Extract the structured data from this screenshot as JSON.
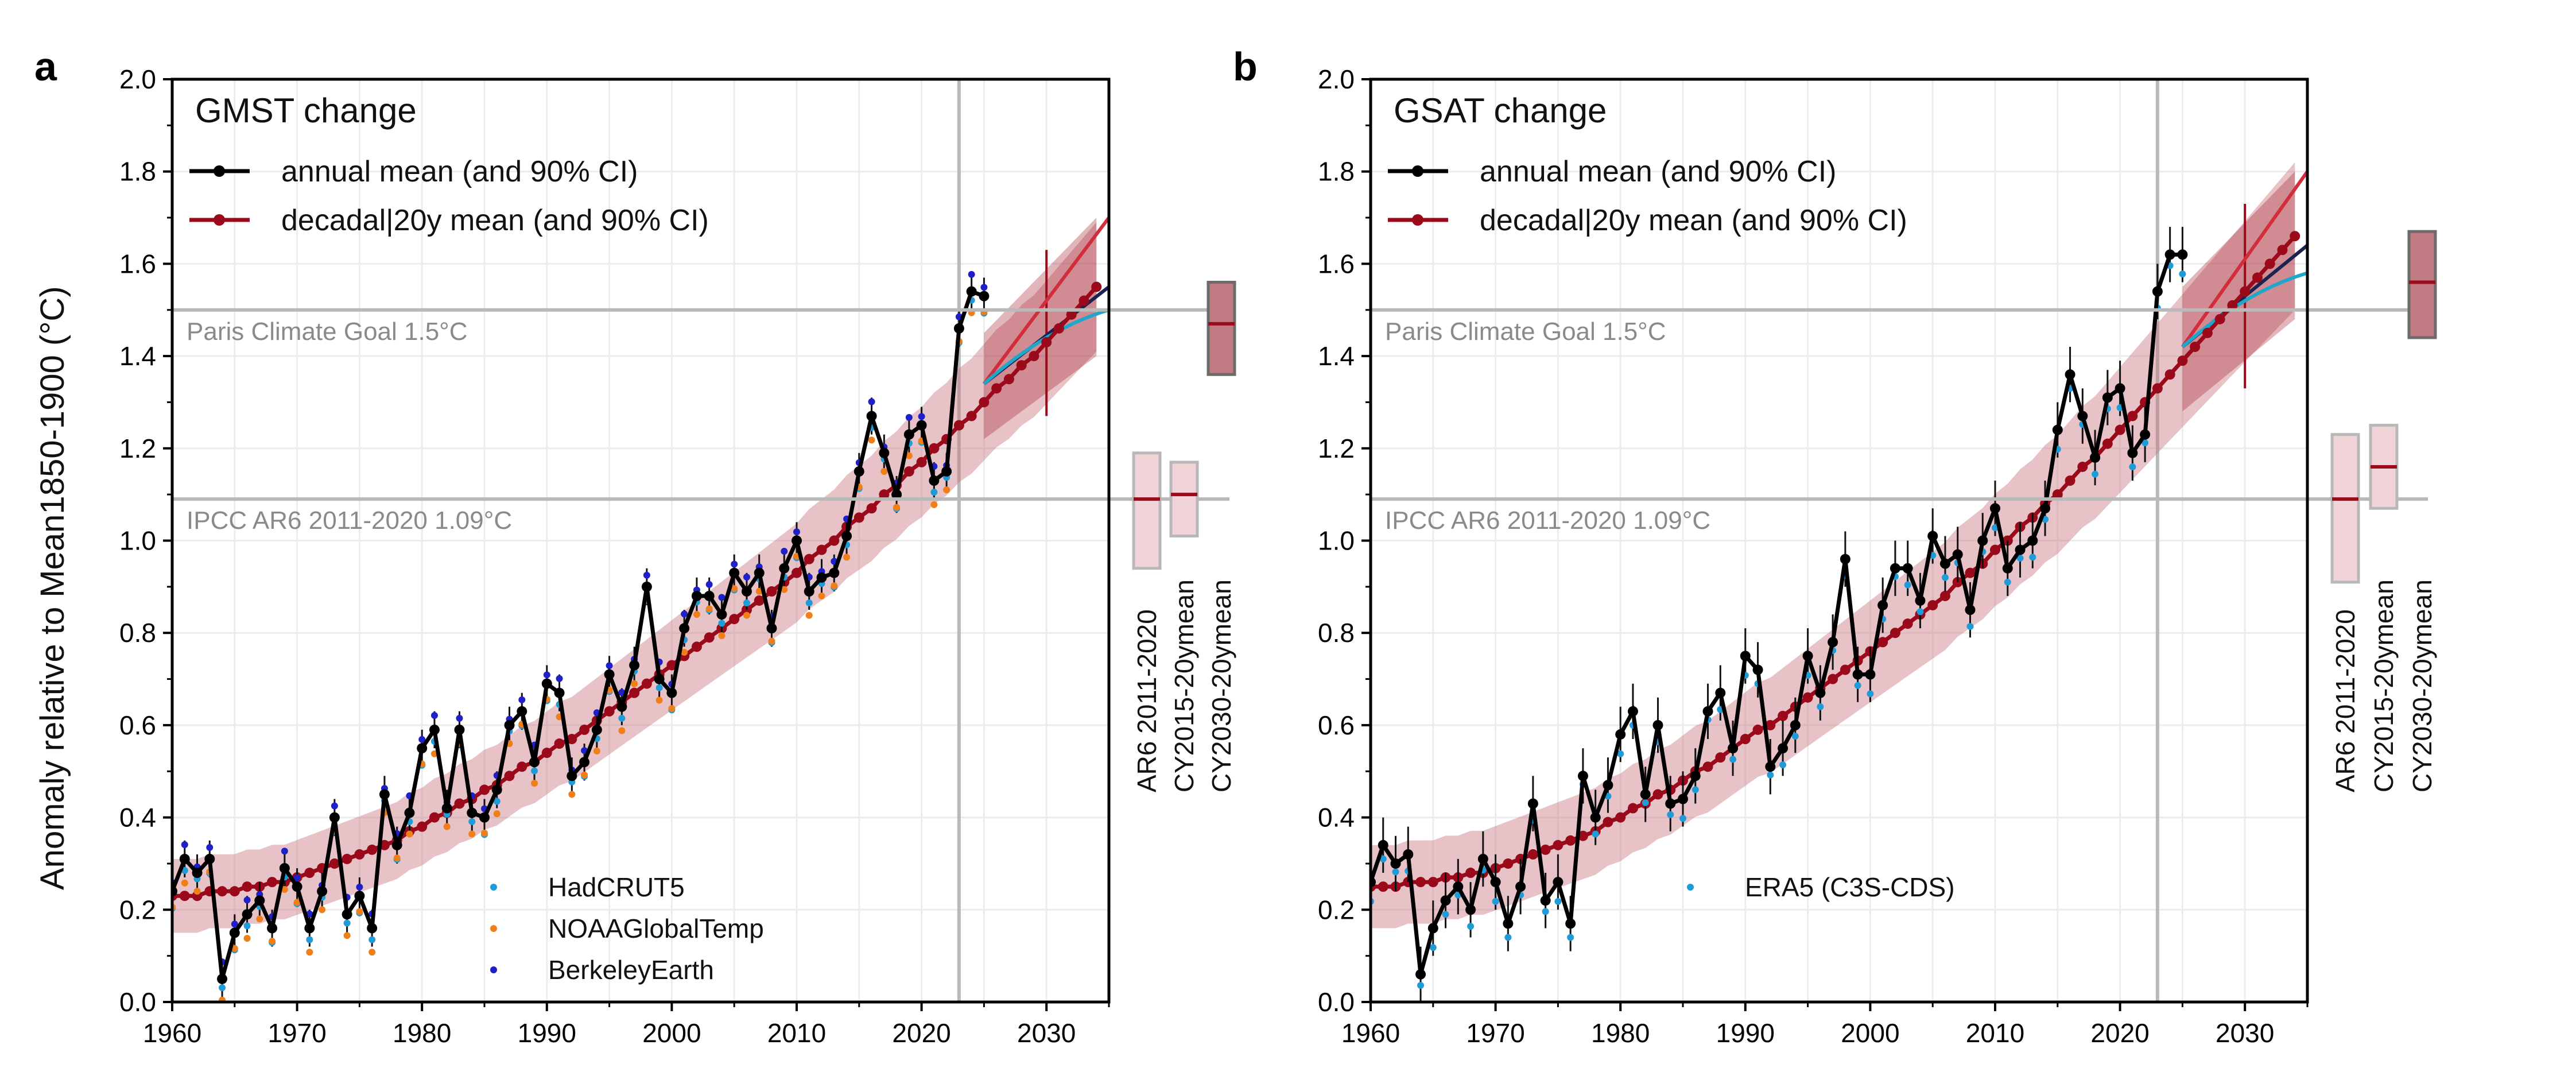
{
  "figure": {
    "ylabel": "Anomaly relative to Mean1850-1900 (°C)"
  },
  "colors": {
    "annual": "#000000",
    "decadal": "#9b0a1a",
    "band": "#c97b84",
    "hadcrut": "#1f9bd7",
    "noaa": "#f07f1a",
    "berkeley": "#2020c8",
    "era5": "#1f9bd7",
    "reference": "#b9b9b9",
    "proj_cyan": "#1fa7c9",
    "proj_red": "#d12d3a",
    "proj_navy": "#1b2350"
  },
  "chart_data": [
    {
      "panel": "a",
      "type": "line",
      "title": "GMST change",
      "xlabel": "",
      "ylabel": "Anomaly relative to Mean1850-1900 (°C)",
      "xlim": [
        1960,
        2035
      ],
      "ylim": [
        0.0,
        2.0
      ],
      "xticks": [
        "1960",
        "1970",
        "1980",
        "1990",
        "2000",
        "2010",
        "2020",
        "2030"
      ],
      "yticks": [
        "0.0",
        "0.2",
        "0.4",
        "0.6",
        "0.8",
        "1.0",
        "1.2",
        "1.4",
        "1.6",
        "1.8",
        "2.0"
      ],
      "grid": true,
      "legend_top": [
        "annual mean (and 90% CI)",
        "decadal|20y mean (and 90% CI)"
      ],
      "legend_bottom": [
        "HadCRUT5",
        "NOAAGlobalTemp",
        "BerkeleyEarth"
      ],
      "reference_lines": [
        {
          "label": "Paris Climate Goal 1.5°C",
          "y": 1.5
        },
        {
          "label": "IPCC AR6 2011-2020 1.09°C",
          "y": 1.09
        }
      ],
      "vline_year": 2023,
      "annual_years": [
        1960,
        2025
      ],
      "annual_values": [
        0.24,
        0.31,
        0.28,
        0.31,
        0.05,
        0.15,
        0.19,
        0.22,
        0.16,
        0.29,
        0.25,
        0.16,
        0.24,
        0.4,
        0.19,
        0.23,
        0.16,
        0.45,
        0.34,
        0.41,
        0.55,
        0.59,
        0.42,
        0.59,
        0.41,
        0.4,
        0.46,
        0.6,
        0.63,
        0.52,
        0.69,
        0.67,
        0.49,
        0.52,
        0.59,
        0.71,
        0.64,
        0.73,
        0.9,
        0.7,
        0.67,
        0.81,
        0.88,
        0.88,
        0.84,
        0.93,
        0.89,
        0.93,
        0.81,
        0.94,
        1.0,
        0.89,
        0.92,
        0.93,
        1.01,
        1.15,
        1.27,
        1.19,
        1.1,
        1.23,
        1.25,
        1.13,
        1.15,
        1.46,
        1.54,
        1.53
      ],
      "annual_ci": 0.04,
      "decadal_years": [
        1960,
        2034
      ],
      "decadal_values": [
        0.23,
        0.23,
        0.23,
        0.24,
        0.24,
        0.24,
        0.25,
        0.25,
        0.26,
        0.26,
        0.27,
        0.28,
        0.29,
        0.3,
        0.31,
        0.32,
        0.33,
        0.34,
        0.35,
        0.37,
        0.38,
        0.4,
        0.41,
        0.43,
        0.44,
        0.46,
        0.47,
        0.49,
        0.51,
        0.52,
        0.54,
        0.56,
        0.57,
        0.59,
        0.61,
        0.63,
        0.65,
        0.67,
        0.69,
        0.71,
        0.73,
        0.75,
        0.77,
        0.79,
        0.81,
        0.83,
        0.85,
        0.87,
        0.89,
        0.91,
        0.93,
        0.96,
        0.98,
        1.0,
        1.03,
        1.05,
        1.07,
        1.1,
        1.12,
        1.15,
        1.17,
        1.2,
        1.22,
        1.25,
        1.27,
        1.3,
        1.33,
        1.35,
        1.38,
        1.4,
        1.43,
        1.46,
        1.49,
        1.52,
        1.55
      ],
      "decadal_ci_halfwidth": [
        0.08,
        0.14
      ],
      "projections": [
        {
          "color": "proj_red",
          "x": [
            2025,
            2035
          ],
          "y": [
            1.34,
            1.7
          ]
        },
        {
          "color": "proj_navy",
          "x": [
            2025,
            2035
          ],
          "y": [
            1.34,
            1.55
          ]
        },
        {
          "color": "proj_cyan",
          "x": [
            2025,
            2035
          ],
          "y": [
            1.34,
            1.5
          ]
        }
      ],
      "proj_band": {
        "x": [
          2025,
          2034
        ],
        "low": [
          1.22,
          1.4
        ],
        "high": [
          1.45,
          1.7
        ]
      },
      "right_boxes": [
        {
          "label": "AR6 2011-2020",
          "mean": 1.09,
          "low": 0.94,
          "high": 1.19,
          "strong": false
        },
        {
          "label": "CY2015-20ymean",
          "mean": 1.1,
          "low": 1.01,
          "high": 1.17,
          "strong": false
        },
        {
          "label": "CY2030-20ymean",
          "mean": 1.47,
          "low": 1.36,
          "high": 1.56,
          "strong": true
        }
      ]
    },
    {
      "panel": "b",
      "type": "line",
      "title": "GSAT change",
      "xlabel": "",
      "ylabel": "",
      "xlim": [
        1960,
        2035
      ],
      "ylim": [
        0.0,
        2.0
      ],
      "xticks": [
        "1960",
        "1970",
        "1980",
        "1990",
        "2000",
        "2010",
        "2020",
        "2030"
      ],
      "yticks": [
        "0.0",
        "0.2",
        "0.4",
        "0.6",
        "0.8",
        "1.0",
        "1.2",
        "1.4",
        "1.6",
        "1.8",
        "2.0"
      ],
      "grid": true,
      "legend_top": [
        "annual mean (and 90% CI)",
        "decadal|20y mean (and 90% CI)"
      ],
      "legend_bottom": [
        "ERA5 (C3S-CDS)"
      ],
      "reference_lines": [
        {
          "label": "Paris Climate Goal 1.5°C",
          "y": 1.5
        },
        {
          "label": "IPCC AR6 2011-2020 1.09°C",
          "y": 1.09
        }
      ],
      "vline_year": 2023,
      "annual_years": [
        1960,
        2025
      ],
      "annual_values": [
        0.26,
        0.34,
        0.3,
        0.32,
        0.06,
        0.16,
        0.22,
        0.25,
        0.2,
        0.31,
        0.26,
        0.17,
        0.25,
        0.43,
        0.22,
        0.26,
        0.17,
        0.49,
        0.4,
        0.47,
        0.58,
        0.63,
        0.45,
        0.6,
        0.43,
        0.44,
        0.49,
        0.63,
        0.67,
        0.55,
        0.75,
        0.72,
        0.51,
        0.55,
        0.6,
        0.75,
        0.67,
        0.78,
        0.96,
        0.71,
        0.71,
        0.86,
        0.94,
        0.94,
        0.87,
        1.01,
        0.95,
        0.97,
        0.85,
        1.0,
        1.07,
        0.94,
        0.98,
        1.0,
        1.07,
        1.24,
        1.36,
        1.27,
        1.18,
        1.31,
        1.33,
        1.19,
        1.23,
        1.54,
        1.62,
        1.62
      ],
      "annual_ci": 0.06,
      "decadal_years": [
        1960,
        2034
      ],
      "decadal_values": [
        0.25,
        0.25,
        0.25,
        0.26,
        0.26,
        0.26,
        0.27,
        0.27,
        0.28,
        0.28,
        0.29,
        0.3,
        0.31,
        0.32,
        0.33,
        0.34,
        0.35,
        0.36,
        0.37,
        0.39,
        0.4,
        0.42,
        0.43,
        0.45,
        0.46,
        0.48,
        0.5,
        0.51,
        0.53,
        0.55,
        0.57,
        0.59,
        0.6,
        0.62,
        0.64,
        0.66,
        0.68,
        0.7,
        0.72,
        0.74,
        0.76,
        0.78,
        0.8,
        0.82,
        0.84,
        0.86,
        0.88,
        0.91,
        0.93,
        0.95,
        0.98,
        1.0,
        1.03,
        1.05,
        1.08,
        1.1,
        1.13,
        1.16,
        1.18,
        1.21,
        1.24,
        1.27,
        1.3,
        1.33,
        1.36,
        1.39,
        1.42,
        1.45,
        1.48,
        1.51,
        1.54,
        1.57,
        1.6,
        1.63,
        1.66
      ],
      "decadal_ci_halfwidth": [
        0.09,
        0.16
      ],
      "projections": [
        {
          "color": "proj_red",
          "x": [
            2025,
            2035
          ],
          "y": [
            1.42,
            1.8
          ]
        },
        {
          "color": "proj_navy",
          "x": [
            2025,
            2035
          ],
          "y": [
            1.42,
            1.64
          ]
        },
        {
          "color": "proj_cyan",
          "x": [
            2025,
            2035
          ],
          "y": [
            1.42,
            1.58
          ]
        }
      ],
      "proj_band": {
        "x": [
          2025,
          2034
        ],
        "low": [
          1.28,
          1.48
        ],
        "high": [
          1.55,
          1.8
        ]
      },
      "right_boxes": [
        {
          "label": "AR6 2011-2020",
          "mean": 1.09,
          "low": 0.91,
          "high": 1.23,
          "strong": false
        },
        {
          "label": "CY2015-20ymean",
          "mean": 1.16,
          "low": 1.07,
          "high": 1.25,
          "strong": false
        },
        {
          "label": "CY2030-20ymean",
          "mean": 1.56,
          "low": 1.44,
          "high": 1.67,
          "strong": true
        }
      ]
    }
  ]
}
